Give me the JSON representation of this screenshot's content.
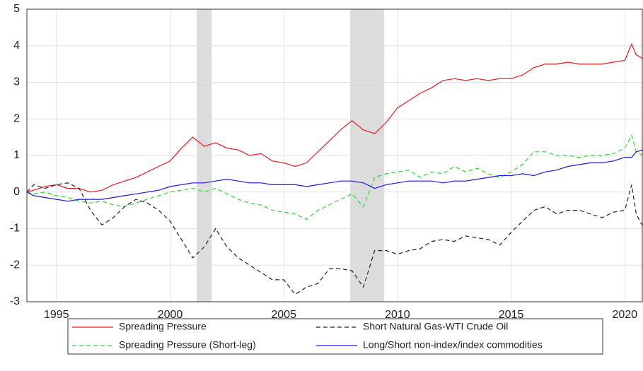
{
  "chart_data": {
    "type": "line",
    "x": [
      1993.7,
      1994,
      1994.5,
      1995,
      1995.5,
      1996,
      1996.5,
      1997,
      1997.5,
      1998,
      1998.5,
      1999,
      1999.5,
      2000,
      2000.5,
      2001,
      2001.5,
      2002,
      2002.5,
      2003,
      2003.5,
      2004,
      2004.5,
      2005,
      2005.5,
      2006,
      2006.5,
      2007,
      2007.5,
      2008,
      2008.5,
      2009,
      2009.5,
      2010,
      2010.5,
      2011,
      2011.5,
      2012,
      2012.5,
      2013,
      2013.5,
      2014,
      2014.5,
      2015,
      2015.5,
      2016,
      2016.5,
      2017,
      2017.5,
      2018,
      2018.5,
      2019,
      2019.5,
      2020,
      2020.3,
      2020.5,
      2020.8
    ],
    "series": [
      {
        "name": "Spreading Pressure",
        "color": "#e8191b",
        "style": "solid",
        "values": [
          0,
          0.05,
          0.15,
          0.2,
          0.1,
          0.1,
          0,
          0.05,
          0.2,
          0.3,
          0.4,
          0.55,
          0.7,
          0.85,
          1.2,
          1.5,
          1.25,
          1.35,
          1.2,
          1.15,
          1.0,
          1.05,
          0.85,
          0.8,
          0.7,
          0.8,
          1.1,
          1.4,
          1.7,
          1.95,
          1.7,
          1.6,
          1.9,
          2.3,
          2.5,
          2.7,
          2.85,
          3.05,
          3.1,
          3.05,
          3.1,
          3.05,
          3.1,
          3.1,
          3.2,
          3.4,
          3.5,
          3.5,
          3.55,
          3.5,
          3.5,
          3.5,
          3.55,
          3.6,
          4.05,
          3.75,
          3.65
        ]
      },
      {
        "name": "Spreading Pressure (Short-leg)",
        "color": "#22dd22",
        "style": "dashed",
        "values": [
          0,
          -0.05,
          0,
          -0.1,
          -0.15,
          -0.25,
          -0.3,
          -0.25,
          -0.35,
          -0.4,
          -0.3,
          -0.2,
          -0.1,
          0,
          0.05,
          0.1,
          0,
          0.1,
          -0.05,
          -0.2,
          -0.3,
          -0.35,
          -0.5,
          -0.55,
          -0.6,
          -0.75,
          -0.5,
          -0.35,
          -0.2,
          -0.05,
          -0.4,
          0.4,
          0.5,
          0.55,
          0.6,
          0.4,
          0.55,
          0.5,
          0.7,
          0.55,
          0.65,
          0.5,
          0.4,
          0.55,
          0.75,
          1.1,
          1.1,
          1.0,
          1.0,
          0.95,
          1.0,
          1.0,
          1.05,
          1.2,
          1.55,
          1.1,
          1.0
        ]
      },
      {
        "name": "Short Natural Gas-WTI Crude Oil",
        "color": "#222222",
        "style": "dashed",
        "values": [
          0,
          0.2,
          0.1,
          0.2,
          0.25,
          0.1,
          -0.5,
          -0.9,
          -0.7,
          -0.4,
          -0.2,
          -0.3,
          -0.5,
          -0.8,
          -1.3,
          -1.8,
          -1.5,
          -1.0,
          -1.5,
          -1.8,
          -2.0,
          -2.2,
          -2.4,
          -2.4,
          -2.8,
          -2.6,
          -2.5,
          -2.1,
          -2.1,
          -2.15,
          -2.6,
          -1.6,
          -1.6,
          -1.7,
          -1.6,
          -1.55,
          -1.35,
          -1.3,
          -1.35,
          -1.2,
          -1.25,
          -1.3,
          -1.45,
          -1.1,
          -0.8,
          -0.5,
          -0.4,
          -0.6,
          -0.5,
          -0.5,
          -0.6,
          -0.7,
          -0.55,
          -0.5,
          0.2,
          -0.6,
          -0.95
        ]
      },
      {
        "name": "Long/Short non-index/index commodities",
        "color": "#1a1ae6",
        "style": "solid",
        "values": [
          0,
          -0.1,
          -0.15,
          -0.2,
          -0.25,
          -0.2,
          -0.2,
          -0.2,
          -0.15,
          -0.1,
          -0.05,
          0,
          0.05,
          0.15,
          0.2,
          0.25,
          0.25,
          0.3,
          0.35,
          0.3,
          0.25,
          0.25,
          0.2,
          0.2,
          0.2,
          0.15,
          0.2,
          0.25,
          0.3,
          0.3,
          0.25,
          0.1,
          0.2,
          0.25,
          0.3,
          0.3,
          0.3,
          0.25,
          0.3,
          0.3,
          0.35,
          0.4,
          0.45,
          0.45,
          0.5,
          0.45,
          0.55,
          0.6,
          0.7,
          0.75,
          0.8,
          0.8,
          0.85,
          0.95,
          0.95,
          1.1,
          1.15
        ]
      }
    ],
    "shaded_regions": [
      [
        2001.17,
        2001.83
      ],
      [
        2007.92,
        2009.42
      ]
    ],
    "xlim": [
      1993.7,
      2020.8
    ],
    "xticks": [
      1995,
      2000,
      2005,
      2010,
      2015,
      2020
    ],
    "ylim": [
      -3,
      5
    ],
    "yticks": [
      -3,
      -2,
      -1,
      0,
      1,
      2,
      3,
      4,
      5
    ],
    "grid": true,
    "legend": "bottom"
  }
}
